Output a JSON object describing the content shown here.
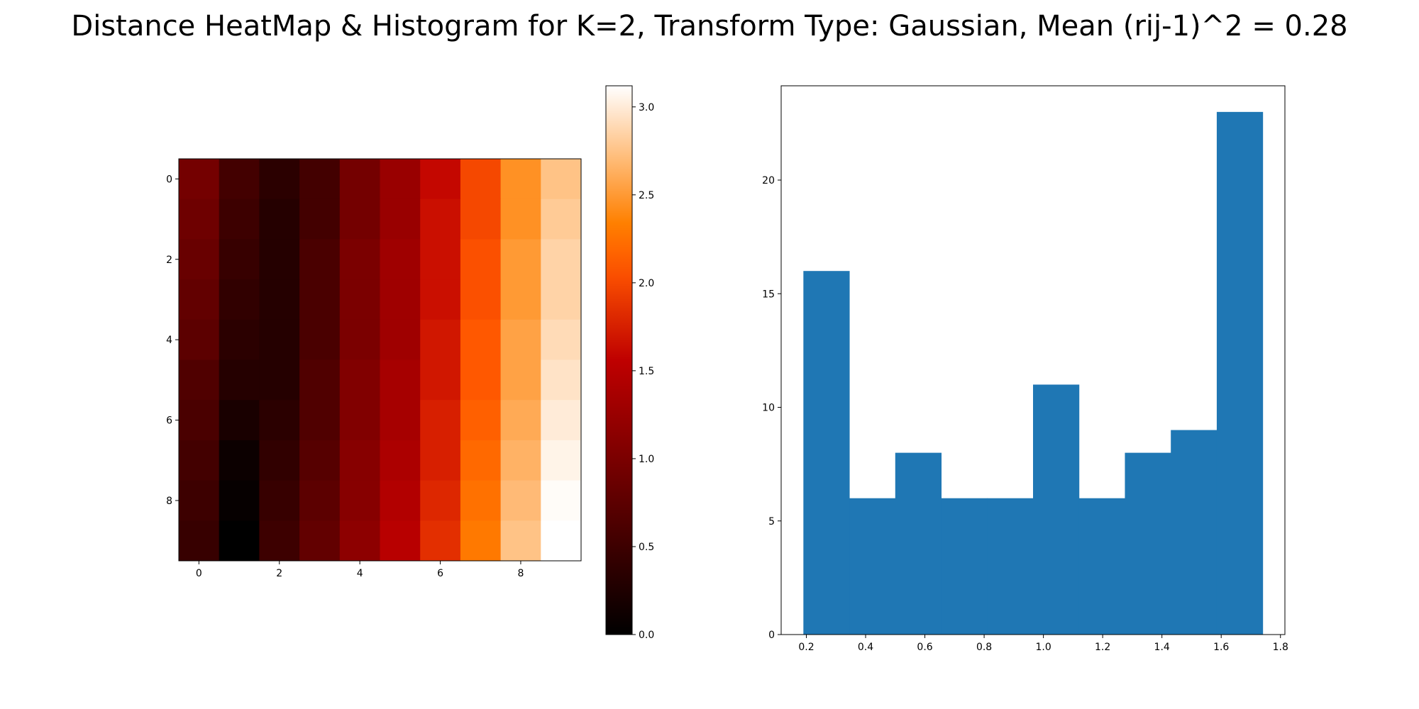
{
  "figure": {
    "title": "Distance HeatMap & Histogram for K=2, Transform Type: Gaussian, Mean (rij-1)^2 = 0.28"
  },
  "chart_data": [
    {
      "type": "heatmap",
      "colormap": "gist_heat",
      "rows": 10,
      "cols": 10,
      "x_ticks": [
        0,
        2,
        4,
        6,
        8
      ],
      "y_ticks": [
        0,
        2,
        4,
        6,
        8
      ],
      "values": [
        [
          0.95,
          0.55,
          0.35,
          0.55,
          0.95,
          1.25,
          1.6,
          2.0,
          2.45,
          2.75
        ],
        [
          0.9,
          0.5,
          0.3,
          0.55,
          0.95,
          1.25,
          1.65,
          2.0,
          2.45,
          2.8
        ],
        [
          0.85,
          0.45,
          0.3,
          0.6,
          1.0,
          1.3,
          1.65,
          2.05,
          2.5,
          2.85
        ],
        [
          0.8,
          0.4,
          0.3,
          0.6,
          1.0,
          1.3,
          1.65,
          2.05,
          2.5,
          2.85
        ],
        [
          0.75,
          0.35,
          0.3,
          0.6,
          1.0,
          1.3,
          1.7,
          2.1,
          2.55,
          2.9
        ],
        [
          0.65,
          0.3,
          0.3,
          0.65,
          1.05,
          1.35,
          1.7,
          2.1,
          2.55,
          2.95
        ],
        [
          0.6,
          0.2,
          0.35,
          0.65,
          1.05,
          1.35,
          1.75,
          2.15,
          2.6,
          3.0
        ],
        [
          0.55,
          0.1,
          0.4,
          0.7,
          1.1,
          1.4,
          1.75,
          2.2,
          2.65,
          3.05
        ],
        [
          0.5,
          0.05,
          0.45,
          0.75,
          1.1,
          1.45,
          1.8,
          2.25,
          2.7,
          3.1
        ],
        [
          0.45,
          0.0,
          0.5,
          0.8,
          1.15,
          1.5,
          1.85,
          2.3,
          2.75,
          3.15
        ]
      ],
      "colorbar": {
        "min": 0.0,
        "max": 3.12,
        "ticks": [
          "0.0",
          "0.5",
          "1.0",
          "1.5",
          "2.0",
          "2.5",
          "3.0"
        ]
      }
    },
    {
      "type": "bar",
      "subtype": "histogram",
      "bin_edges": [
        0.19,
        0.345,
        0.5,
        0.655,
        0.81,
        0.965,
        1.12,
        1.275,
        1.43,
        1.585,
        1.74
      ],
      "counts": [
        16,
        6,
        8,
        6,
        6,
        11,
        6,
        8,
        9,
        23
      ],
      "color": "#1f77b4",
      "xlim": [
        0.115,
        1.815
      ],
      "ylim": [
        0,
        24.15
      ],
      "x_ticks": [
        "0.2",
        "0.4",
        "0.6",
        "0.8",
        "1.0",
        "1.2",
        "1.4",
        "1.6",
        "1.8"
      ],
      "y_ticks": [
        "0",
        "5",
        "10",
        "15",
        "20"
      ]
    }
  ]
}
